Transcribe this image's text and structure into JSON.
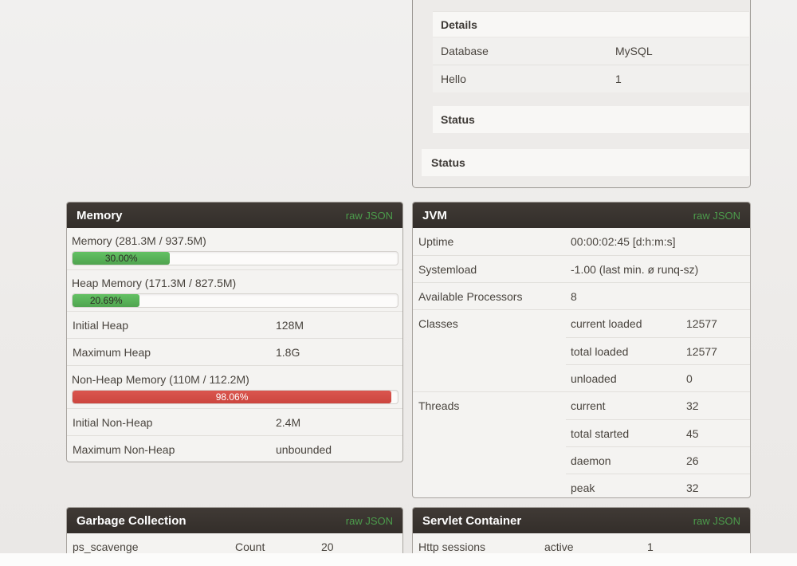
{
  "colors": {
    "accent_green": "#4c9c4c",
    "bar_green": "#5cb85c",
    "bar_red": "#d9534f",
    "header_dark": "#37322e"
  },
  "health_card": {
    "details_title": "Details",
    "rows": [
      {
        "label": "Database",
        "value": "MySQL"
      },
      {
        "label": "Hello",
        "value": "1"
      }
    ],
    "status_inner_title": "Status",
    "status_outer_title": "Status"
  },
  "memory": {
    "title": "Memory",
    "raw_json": "raw JSON",
    "gauges": [
      {
        "label": "Memory (281.3M / 937.5M)",
        "percent": 30.0,
        "percent_label": "30.00%"
      },
      {
        "label": "Heap Memory (171.3M / 827.5M)",
        "percent": 20.69,
        "percent_label": "20.69%"
      }
    ],
    "heap_rows": [
      {
        "label": "Initial Heap",
        "value": "128M"
      },
      {
        "label": "Maximum Heap",
        "value": "1.8G"
      }
    ],
    "nonheap_gauge": {
      "label": "Non-Heap Memory (110M / 112.2M)",
      "percent": 98.06,
      "percent_label": "98.06%"
    },
    "nonheap_rows": [
      {
        "label": "Initial Non-Heap",
        "value": "2.4M"
      },
      {
        "label": "Maximum Non-Heap",
        "value": "unbounded"
      }
    ]
  },
  "jvm": {
    "title": "JVM",
    "raw_json": "raw JSON",
    "simple_rows": [
      {
        "label": "Uptime",
        "value": "00:00:02:45 [d:h:m:s]"
      },
      {
        "label": "Systemload",
        "value": "-1.00 (last min. ø runq-sz)"
      },
      {
        "label": "Available Processors",
        "value": "8"
      }
    ],
    "groups": [
      {
        "label": "Classes",
        "entries": [
          {
            "key": "current loaded",
            "value": "12577"
          },
          {
            "key": "total loaded",
            "value": "12577"
          },
          {
            "key": "unloaded",
            "value": "0"
          }
        ]
      },
      {
        "label": "Threads",
        "entries": [
          {
            "key": "current",
            "value": "32"
          },
          {
            "key": "total started",
            "value": "45"
          },
          {
            "key": "daemon",
            "value": "26"
          },
          {
            "key": "peak",
            "value": "32"
          }
        ]
      }
    ]
  },
  "gc": {
    "title": "Garbage Collection",
    "raw_json": "raw JSON",
    "rows": [
      {
        "name": "ps_scavenge",
        "key": "Count",
        "value": "20"
      }
    ]
  },
  "servlet": {
    "title": "Servlet Container",
    "raw_json": "raw JSON",
    "rows": [
      {
        "name": "Http sessions",
        "key": "active",
        "value": "1"
      }
    ]
  }
}
